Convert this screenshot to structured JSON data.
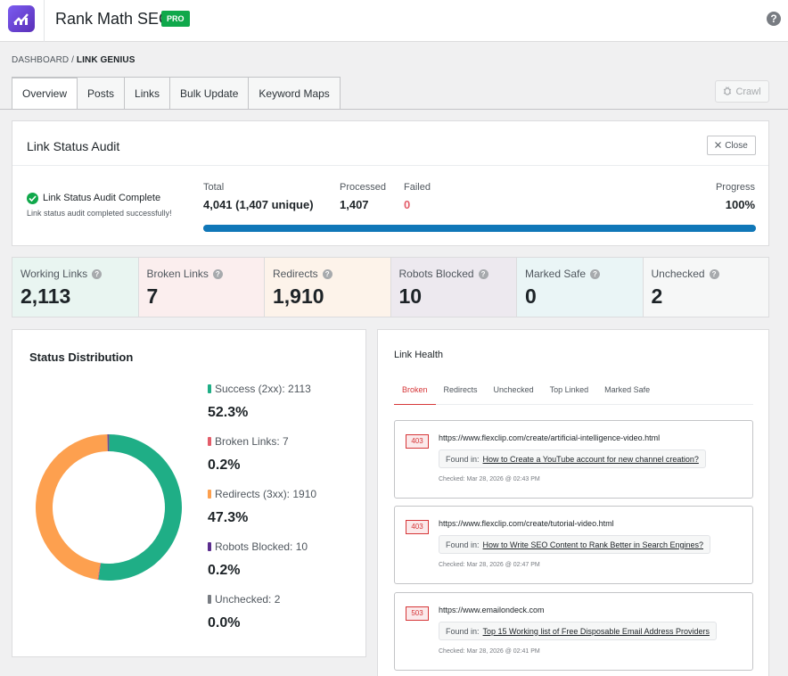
{
  "app": {
    "title": "Rank Math SEO",
    "badge": "PRO",
    "help": "?"
  },
  "breadcrumb": {
    "parent": "DASHBOARD",
    "sep": "/",
    "current": "LINK GENIUS"
  },
  "tabs": [
    {
      "label": "Overview",
      "active": true
    },
    {
      "label": "Posts"
    },
    {
      "label": "Links"
    },
    {
      "label": "Bulk Update"
    },
    {
      "label": "Keyword Maps"
    }
  ],
  "crawl": {
    "label": "Crawl"
  },
  "audit": {
    "title": "Link Status Audit",
    "close_label": "Close",
    "status_label": "Link Status Audit Complete",
    "status_message": "Link status audit completed successfully!",
    "total_label": "Total",
    "total_value": "4,041 (1,407 unique)",
    "processed_label": "Processed",
    "processed_value": "1,407",
    "failed_label": "Failed",
    "failed_value": "0",
    "progress_label": "Progress",
    "progress_value": "100%",
    "progress_fraction": 1.0
  },
  "stats": [
    {
      "label": "Working Links",
      "value": "2,113",
      "bg": "#e9f5f1"
    },
    {
      "label": "Broken Links",
      "value": "7",
      "bg": "#fbeeee"
    },
    {
      "label": "Redirects",
      "value": "1,910",
      "bg": "#fdf3ea"
    },
    {
      "label": "Robots Blocked",
      "value": "10",
      "bg": "#ede9ef"
    },
    {
      "label": "Marked Safe",
      "value": "0",
      "bg": "#eaf5f6"
    },
    {
      "label": "Unchecked",
      "value": "2",
      "bg": "#f6f7f7"
    }
  ],
  "distribution": {
    "title": "Status Distribution",
    "items": [
      {
        "label": "Success (2xx): 2113",
        "pct": "52.3%",
        "value": 2113,
        "color": "#1fae86"
      },
      {
        "label": "Broken Links: 7",
        "pct": "0.2%",
        "value": 7,
        "color": "#e35d6a"
      },
      {
        "label": "Redirects (3xx): 1910",
        "pct": "47.3%",
        "value": 1910,
        "color": "#fda04f"
      },
      {
        "label": "Robots Blocked: 10",
        "pct": "0.2%",
        "value": 10,
        "color": "#5b2d8e"
      },
      {
        "label": "Unchecked: 2",
        "pct": "0.0%",
        "value": 2,
        "color": "#787c82"
      }
    ]
  },
  "health": {
    "title": "Link Health",
    "tabs": [
      "Broken",
      "Redirects",
      "Unchecked",
      "Top Linked",
      "Marked Safe"
    ],
    "found_prefix": "Found in:",
    "links": [
      {
        "code": "403",
        "url": "https://www.flexclip.com/create/artificial-intelligence-video.html",
        "found": "How to Create a YouTube account for new channel creation?",
        "checked": "Checked: Mar 28, 2026 @ 02:43 PM"
      },
      {
        "code": "403",
        "url": "https://www.flexclip.com/create/tutorial-video.html",
        "found": "How to Write SEO Content to Rank Better in Search Engines?",
        "checked": "Checked: Mar 28, 2026 @ 02:47 PM"
      },
      {
        "code": "503",
        "url": "https://www.emailondeck.com",
        "found": "Top 15 Working list of Free Disposable Email Address Providers",
        "checked": "Checked: Mar 28, 2026 @ 02:41 PM"
      }
    ]
  }
}
